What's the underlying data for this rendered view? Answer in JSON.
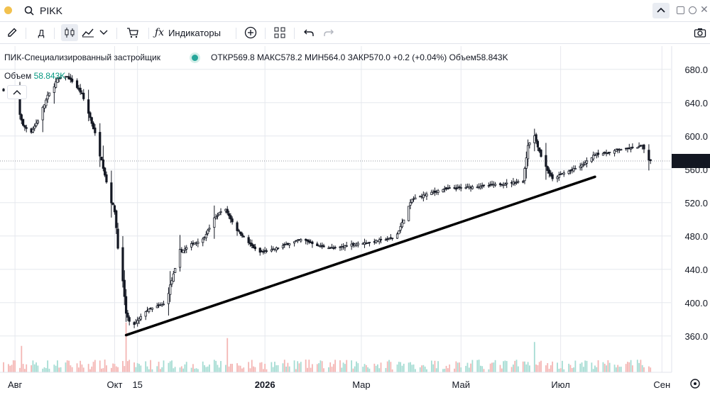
{
  "topbar": {
    "symbol": "PIKK"
  },
  "toolbar": {
    "interval_label": "Д",
    "indicators_label": "Индикаторы"
  },
  "legend": {
    "title": "ПИК-Специализированный застройщик",
    "open_label": "ОТКР",
    "open": "569.8",
    "high_label": "МАКС",
    "high": "578.2",
    "low_label": "МИН",
    "low": "564.0",
    "close_label": "ЗАКР",
    "close": "570.0",
    "change": "+0.2 (+0.04%)",
    "volume_label": "Объем",
    "volume": "58.843K",
    "volume_row_label": "Объем",
    "volume_row_value": "58.843K"
  },
  "colors": {
    "up": "#26a69a",
    "down": "#ef5350",
    "candle": "#131722",
    "accent": "#089981",
    "trendline": "#000000"
  },
  "icons": [
    "pencil-icon",
    "candles-icon",
    "area-chart-icon",
    "chevron-down-icon",
    "cart-icon",
    "fx-icon",
    "plus-circle-icon",
    "grid-icon",
    "undo-icon",
    "redo-icon",
    "camera-icon",
    "settings-icon",
    "search-icon",
    "chevron-up-icon"
  ],
  "chart_data": {
    "type": "candlestick",
    "ylim": [
      330,
      690
    ],
    "yticks": [
      "680.0",
      "640.0",
      "600.0",
      "560.0",
      "520.0",
      "480.0",
      "440.0",
      "400.0",
      "360.0"
    ],
    "ytick_values": [
      680,
      640,
      600,
      560,
      520,
      480,
      440,
      400,
      360
    ],
    "last_price": "570.0",
    "x_domain": [
      "2025-07-25",
      "2026-08-31"
    ],
    "xticks": [
      "Авг",
      "Окт",
      "15",
      "2026",
      "Мар",
      "Май",
      "Июл",
      "Сен"
    ],
    "xtick_dates": [
      "2025-08-01",
      "2025-10-01",
      "2025-10-15",
      "2026-01-01",
      "2026-03-01",
      "2026-05-01",
      "2026-07-01",
      "2026-09-01"
    ],
    "trendline": [
      [
        "2025-10-08",
        361
      ],
      [
        "2026-07-22",
        551
      ]
    ],
    "series_sampled": [
      [
        "2025-07-25",
        655
      ],
      [
        "2025-08-01",
        650
      ],
      [
        "2025-08-06",
        612
      ],
      [
        "2025-08-11",
        605
      ],
      [
        "2025-08-16",
        622
      ],
      [
        "2025-08-21",
        648
      ],
      [
        "2025-08-27",
        668
      ],
      [
        "2025-09-01",
        672
      ],
      [
        "2025-09-06",
        664
      ],
      [
        "2025-09-11",
        650
      ],
      [
        "2025-09-16",
        622
      ],
      [
        "2025-09-21",
        590
      ],
      [
        "2025-09-26",
        545
      ],
      [
        "2025-10-01",
        510
      ],
      [
        "2025-10-05",
        430
      ],
      [
        "2025-10-08",
        388
      ],
      [
        "2025-10-11",
        370
      ],
      [
        "2025-10-15",
        378
      ],
      [
        "2025-10-20",
        390
      ],
      [
        "2025-10-26",
        395
      ],
      [
        "2025-10-31",
        398
      ],
      [
        "2025-11-04",
        420
      ],
      [
        "2025-11-10",
        460
      ],
      [
        "2025-11-17",
        470
      ],
      [
        "2025-11-24",
        476
      ],
      [
        "2025-12-01",
        500
      ],
      [
        "2025-12-07",
        515
      ],
      [
        "2025-12-14",
        490
      ],
      [
        "2025-12-21",
        474
      ],
      [
        "2025-12-28",
        460
      ],
      [
        "2026-01-05",
        463
      ],
      [
        "2026-01-14",
        470
      ],
      [
        "2026-01-24",
        476
      ],
      [
        "2026-02-03",
        468
      ],
      [
        "2026-02-13",
        465
      ],
      [
        "2026-02-23",
        470
      ],
      [
        "2026-03-05",
        472
      ],
      [
        "2026-03-15",
        476
      ],
      [
        "2026-03-22",
        478
      ],
      [
        "2026-03-27",
        500
      ],
      [
        "2026-04-01",
        524
      ],
      [
        "2026-04-10",
        530
      ],
      [
        "2026-04-20",
        536
      ],
      [
        "2026-05-01",
        538
      ],
      [
        "2026-05-15",
        540
      ],
      [
        "2026-05-29",
        543
      ],
      [
        "2026-06-08",
        546
      ],
      [
        "2026-06-11",
        590
      ],
      [
        "2026-06-15",
        600
      ],
      [
        "2026-06-20",
        570
      ],
      [
        "2026-06-26",
        548
      ],
      [
        "2026-07-02",
        555
      ],
      [
        "2026-07-09",
        560
      ],
      [
        "2026-07-15",
        566
      ],
      [
        "2026-07-22",
        578
      ],
      [
        "2026-07-30",
        580
      ],
      [
        "2026-08-06",
        584
      ],
      [
        "2026-08-13",
        585
      ],
      [
        "2026-08-20",
        588
      ],
      [
        "2026-08-25",
        570
      ]
    ],
    "volume_spikes": [
      [
        "2025-08-05",
        0.35
      ],
      [
        "2025-10-08",
        0.95
      ],
      [
        "2025-12-09",
        0.55
      ],
      [
        "2026-01-10",
        0.18
      ],
      [
        "2026-03-28",
        1.0
      ],
      [
        "2026-06-15",
        0.45
      ]
    ]
  }
}
